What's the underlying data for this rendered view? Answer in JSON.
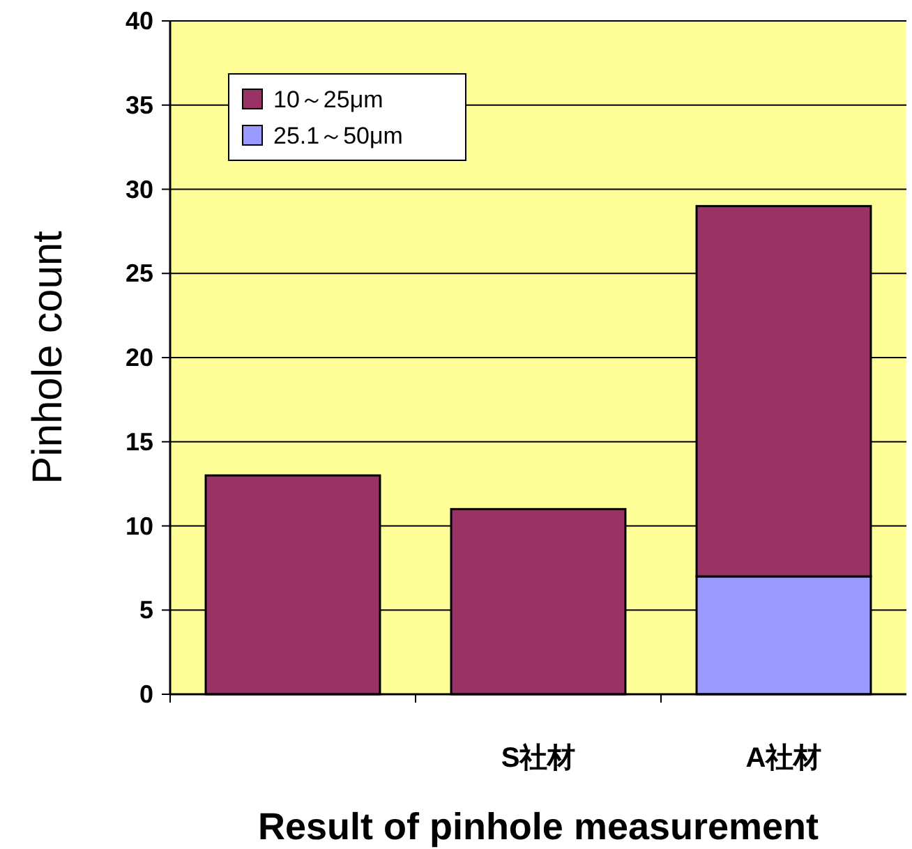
{
  "chart_data": {
    "type": "bar",
    "stacked": true,
    "xlabel": "Result of pinhole measurement",
    "ylabel": "Pinhole count",
    "categories": [
      null,
      "S社材",
      "A社材"
    ],
    "series": [
      {
        "name": "25.1～50μm",
        "color": "#9999ff",
        "values": [
          null,
          null,
          7
        ]
      },
      {
        "name": "10～25μm",
        "color": "#993366",
        "values": [
          13,
          11,
          22
        ]
      }
    ],
    "ylim": [
      0,
      40
    ],
    "yticks": [
      0,
      5,
      10,
      15,
      20,
      25,
      30,
      35,
      40
    ],
    "grid": "y",
    "legend": "top left"
  }
}
